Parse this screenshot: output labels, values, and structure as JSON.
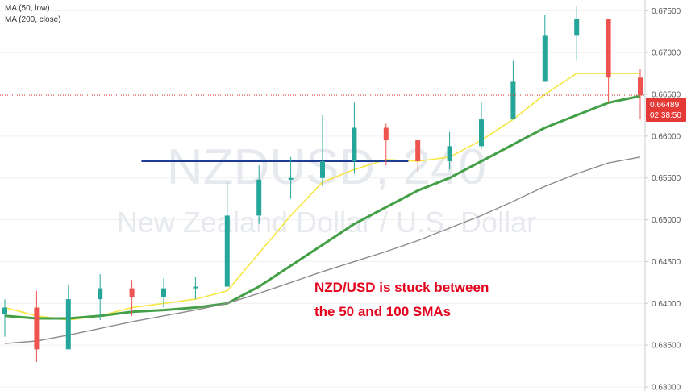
{
  "legend": {
    "ma50": "MA (50, low)",
    "ma200": "MA (200, close)"
  },
  "watermark": {
    "symbol": "NZDUSD, 240",
    "description": "New Zealand Dollar / U.S. Dollar"
  },
  "annotation": {
    "line1": "NZD/USD is stuck between",
    "line2": "the 50 and 100 SMAs",
    "color": "#e3001b"
  },
  "price_tag": {
    "price": "0.66489",
    "countdown": "02:38:50",
    "color": "#e53935"
  },
  "colors": {
    "up": "#26a69a",
    "down": "#ef5350",
    "ma50": "#f5e642",
    "ma100": "#43a047",
    "ma200": "#8c8c8c",
    "level": "#1c3f94",
    "grid": "#f0f0f0",
    "axis": "#cccccc"
  },
  "chart_data": {
    "type": "line",
    "symbol": "NZDUSD",
    "timeframe": "240",
    "ylim": [
      0.63,
      0.6758
    ],
    "yticks": [
      "0.67500",
      "0.67000",
      "0.66500",
      "0.66000",
      "0.65500",
      "0.65000",
      "0.64500",
      "0.64000",
      "0.63500",
      "0.63000"
    ],
    "x": [
      0,
      10,
      20,
      30,
      40,
      50,
      60,
      70,
      80,
      90,
      100,
      110,
      120,
      130,
      140,
      150,
      160,
      170,
      180,
      190,
      200
    ],
    "close": [
      0.6395,
      0.6345,
      0.6405,
      0.6418,
      0.6408,
      0.6418,
      0.642,
      0.6505,
      0.6548,
      0.655,
      0.657,
      0.661,
      0.6595,
      0.657,
      0.6588,
      0.662,
      0.6665,
      0.672,
      0.674,
      0.667,
      0.6649
    ],
    "high": [
      0.6405,
      0.6415,
      0.6422,
      0.6435,
      0.6428,
      0.643,
      0.6432,
      0.6545,
      0.6565,
      0.6575,
      0.6625,
      0.664,
      0.6615,
      0.6585,
      0.6605,
      0.664,
      0.669,
      0.6745,
      0.6755,
      0.669,
      0.668
    ],
    "low": [
      0.636,
      0.633,
      0.637,
      0.638,
      0.6385,
      0.6395,
      0.6405,
      0.644,
      0.6495,
      0.6525,
      0.654,
      0.6555,
      0.6565,
      0.6558,
      0.656,
      0.6585,
      0.663,
      0.6668,
      0.669,
      0.664,
      0.662
    ],
    "series": [
      {
        "name": "MA (50, low)",
        "values": [
          0.6395,
          0.6385,
          0.638,
          0.6385,
          0.6395,
          0.64,
          0.6405,
          0.6415,
          0.646,
          0.6505,
          0.6545,
          0.656,
          0.6572,
          0.657,
          0.6575,
          0.6595,
          0.662,
          0.665,
          0.6675,
          0.6675,
          0.6675
        ]
      },
      {
        "values": [
          0.6385,
          0.6382,
          0.6382,
          0.6385,
          0.639,
          0.6392,
          0.6395,
          0.64,
          0.642,
          0.6445,
          0.647,
          0.6495,
          0.6515,
          0.6535,
          0.655,
          0.657,
          0.659,
          0.661,
          0.6625,
          0.664,
          0.6648
        ]
      },
      {
        "name": "MA (200, close)",
        "values": [
          0.6352,
          0.6355,
          0.6362,
          0.637,
          0.6378,
          0.6385,
          0.6392,
          0.64,
          0.6412,
          0.6425,
          0.6438,
          0.645,
          0.6462,
          0.6475,
          0.649,
          0.6505,
          0.6522,
          0.654,
          0.6555,
          0.6568,
          0.6575
        ]
      }
    ],
    "resistance_level": 0.657,
    "current_price": 0.66489
  }
}
